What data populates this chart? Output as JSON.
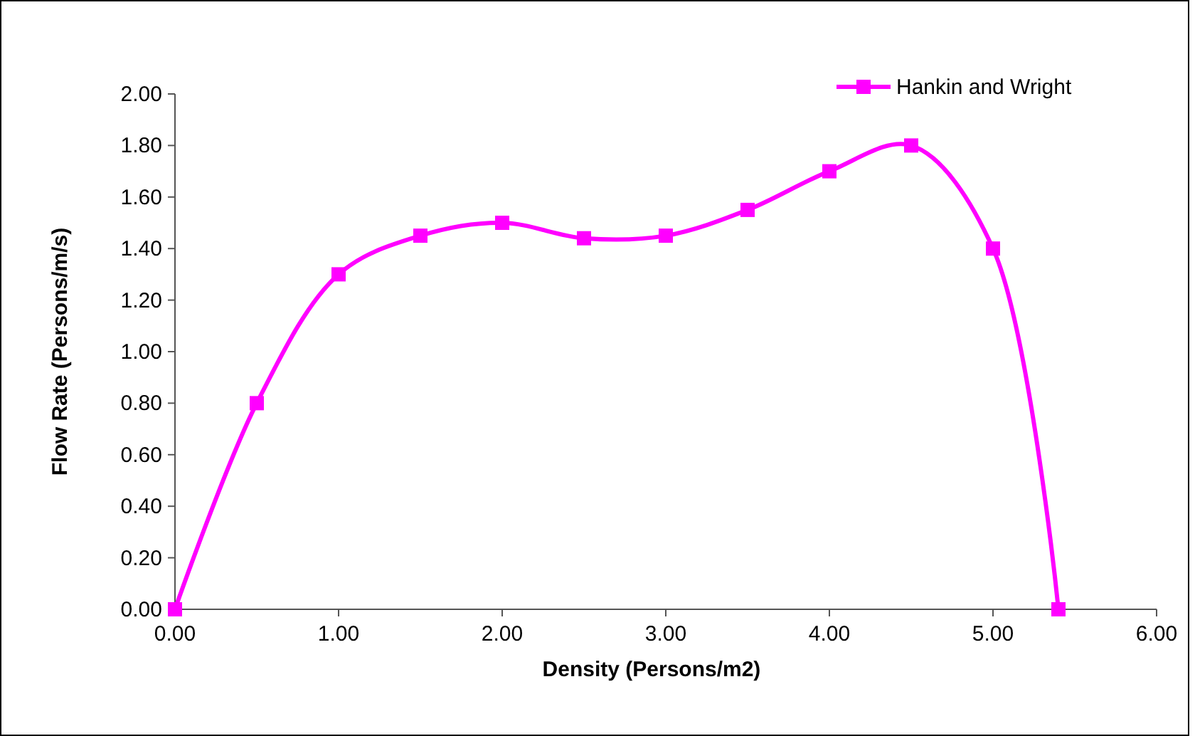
{
  "chart_data": {
    "type": "line",
    "xlabel": "Density (Persons/m2)",
    "ylabel": "Flow Rate (Persons/m/s)",
    "x": [
      0,
      0.5,
      1,
      1.5,
      2,
      2.5,
      3,
      3.5,
      4,
      4.5,
      5,
      5.4
    ],
    "series": [
      {
        "name": "Hankin and Wright",
        "color": "#ff00ff",
        "values": [
          0,
          0.8,
          1.3,
          1.45,
          1.5,
          1.44,
          1.45,
          1.55,
          1.7,
          1.8,
          1.4,
          0
        ]
      }
    ],
    "xlim": [
      0,
      6
    ],
    "ylim": [
      0,
      2
    ],
    "xticks": [
      {
        "value": 0,
        "label": "0.00"
      },
      {
        "value": 1,
        "label": "1.00"
      },
      {
        "value": 2,
        "label": "2.00"
      },
      {
        "value": 3,
        "label": "3.00"
      },
      {
        "value": 4,
        "label": "4.00"
      },
      {
        "value": 5,
        "label": "5.00"
      },
      {
        "value": 6,
        "label": "6.00"
      }
    ],
    "yticks": [
      {
        "value": 0,
        "label": "0.00"
      },
      {
        "value": 0.2,
        "label": "0.20"
      },
      {
        "value": 0.4,
        "label": "0.40"
      },
      {
        "value": 0.6,
        "label": "0.60"
      },
      {
        "value": 0.8,
        "label": "0.80"
      },
      {
        "value": 1,
        "label": "1.00"
      },
      {
        "value": 1.2,
        "label": "1.20"
      },
      {
        "value": 1.4,
        "label": "1.40"
      },
      {
        "value": 1.6,
        "label": "1.60"
      },
      {
        "value": 1.8,
        "label": "1.80"
      },
      {
        "value": 2,
        "label": "2.00"
      }
    ],
    "marker": "square",
    "line_style": "solid",
    "legend": "top right",
    "grid": false
  }
}
